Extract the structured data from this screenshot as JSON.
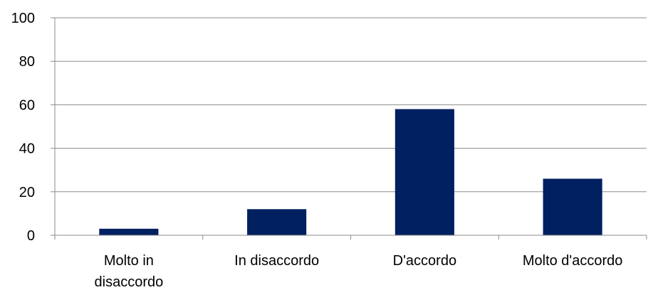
{
  "chart_data": {
    "type": "bar",
    "title": "",
    "xlabel": "",
    "ylabel": "",
    "categories": [
      "Molto in disaccordo",
      "In disaccordo",
      "D'accordo",
      "Molto d'accordo"
    ],
    "category_label_lines": [
      [
        "Molto in",
        "disaccordo"
      ],
      [
        "In disaccordo"
      ],
      [
        "D'accordo"
      ],
      [
        "Molto d'accordo"
      ]
    ],
    "values": [
      3,
      12,
      58,
      26
    ],
    "ylim": [
      0,
      100
    ],
    "yticks": [
      0,
      20,
      40,
      60,
      80,
      100
    ],
    "grid": true,
    "legend": "none",
    "bar_color": "#002060",
    "grid_color": "#8c8c8c"
  }
}
